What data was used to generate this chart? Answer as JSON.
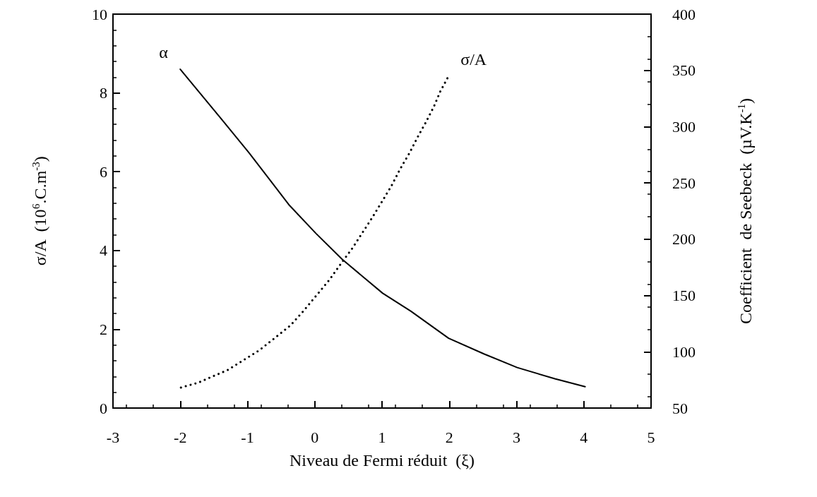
{
  "chart_data": {
    "type": "line",
    "xlabel": "Niveau de Fermi réduit  (ξ)",
    "ylabel": "σ/A  (10$^{6}$.C.m$^{-3}$)",
    "y2label": "Coefficient  de Seebeck  (µV.K$^{-1}$)",
    "xlim": [
      -3,
      5
    ],
    "xticks": [
      -3,
      -2,
      -1,
      0,
      1,
      2,
      3,
      4,
      5
    ],
    "ylim": [
      0,
      10
    ],
    "yticks": [
      0,
      2,
      4,
      6,
      8,
      10
    ],
    "y2lim": [
      50,
      400
    ],
    "y2ticks": [
      50,
      100,
      150,
      200,
      250,
      300,
      350,
      400
    ],
    "grid": false,
    "legend": false,
    "marker": "none",
    "series": [
      {
        "name": "α",
        "color": "#000000",
        "axis": "y2",
        "line_style": "solid",
        "x": [
          -2,
          -1.39,
          -0.98,
          -0.375,
          0.02,
          0.41,
          1.01,
          1.43,
          1.99,
          2.52,
          3.01,
          3.57,
          4.02
        ],
        "values": [
          351,
          307,
          277,
          230,
          205,
          182,
          152,
          136,
          112,
          98,
          86,
          76,
          69
        ]
      },
      {
        "name": "σ/A",
        "color": "#000000",
        "line_style": "dotted",
        "x": [
          -1.99,
          -1.74,
          -1.29,
          -0.83,
          -0.6,
          -0.36,
          -0.17,
          0.04,
          0.22,
          0.4,
          0.56,
          0.72,
          0.86,
          1.01,
          1.14,
          1.27,
          1.41,
          1.53,
          1.65,
          1.77,
          1.87,
          2.0
        ],
        "values": [
          0.52,
          0.64,
          0.97,
          1.46,
          1.77,
          2.1,
          2.46,
          2.89,
          3.26,
          3.69,
          4.06,
          4.48,
          4.85,
          5.27,
          5.64,
          6.07,
          6.48,
          6.88,
          7.25,
          7.65,
          8.05,
          8.46
        ]
      }
    ]
  }
}
